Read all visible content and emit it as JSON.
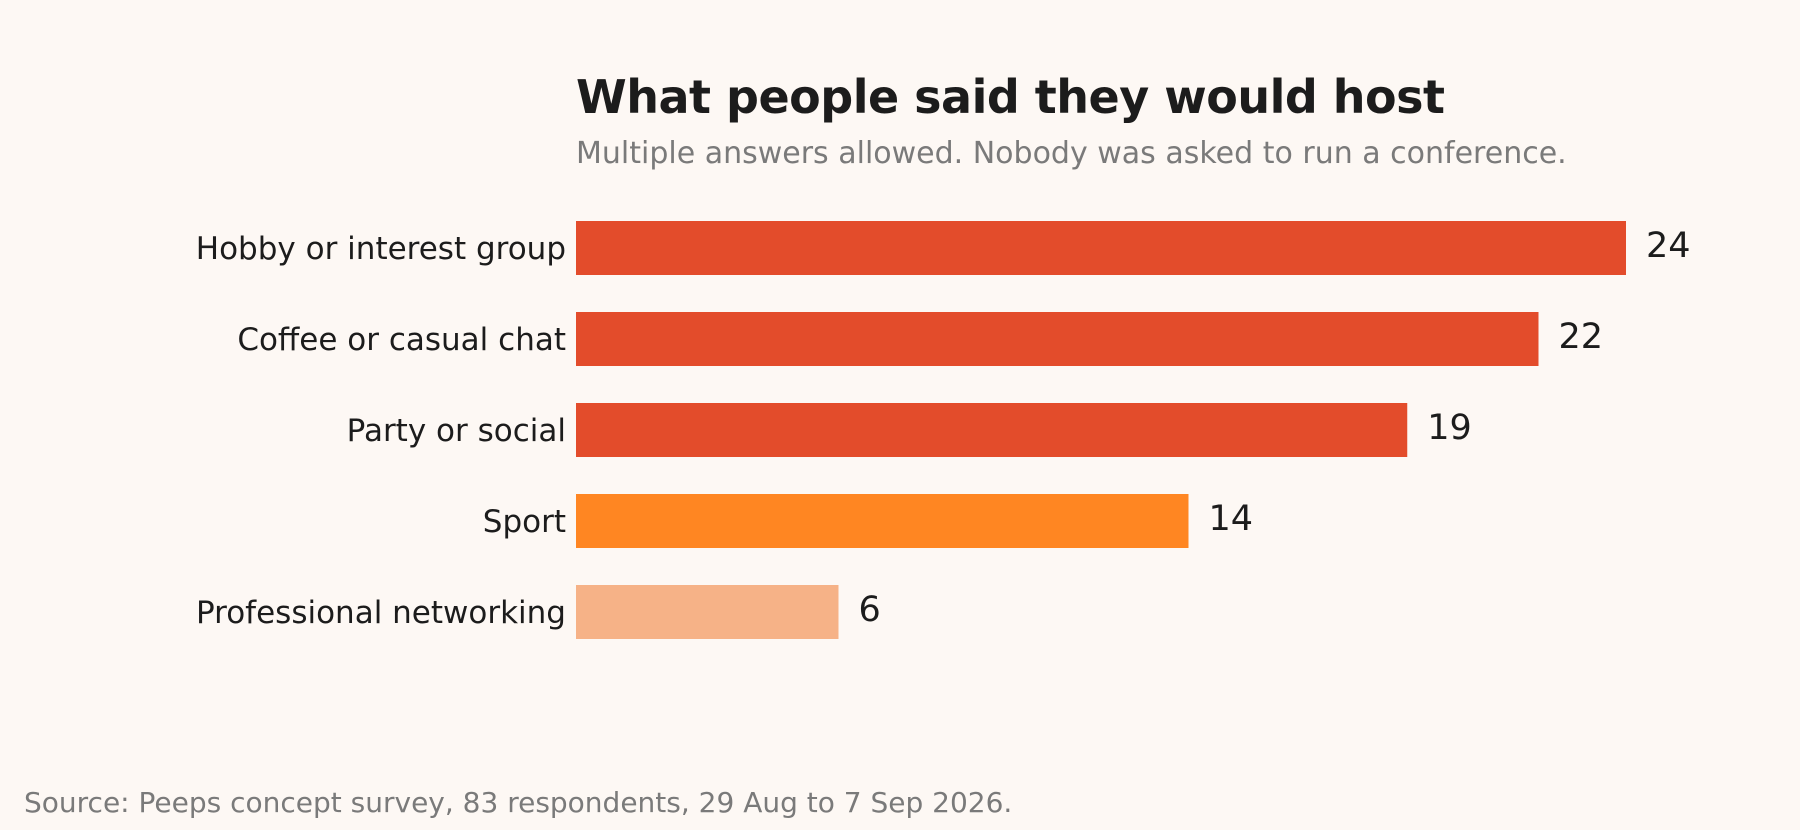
{
  "chart_data": {
    "type": "bar",
    "orientation": "horizontal",
    "title": "What people said they would host",
    "subtitle": "Multiple answers allowed. Nobody was asked to run a conference.",
    "categories": [
      "Hobby or interest group",
      "Coffee or casual chat",
      "Party or social",
      "Sport",
      "Professional networking"
    ],
    "values": [
      24,
      22,
      19,
      14,
      6
    ],
    "colors": [
      "#e34c2b",
      "#e34c2b",
      "#e34c2b",
      "#ff8622",
      "#f6b287"
    ],
    "xlim": [
      0,
      24
    ],
    "grid": false,
    "legend": "none"
  },
  "footer": {
    "source": "Source: Peeps concept survey, 83 respondents, 29 Aug to 7 Sep 2026."
  }
}
